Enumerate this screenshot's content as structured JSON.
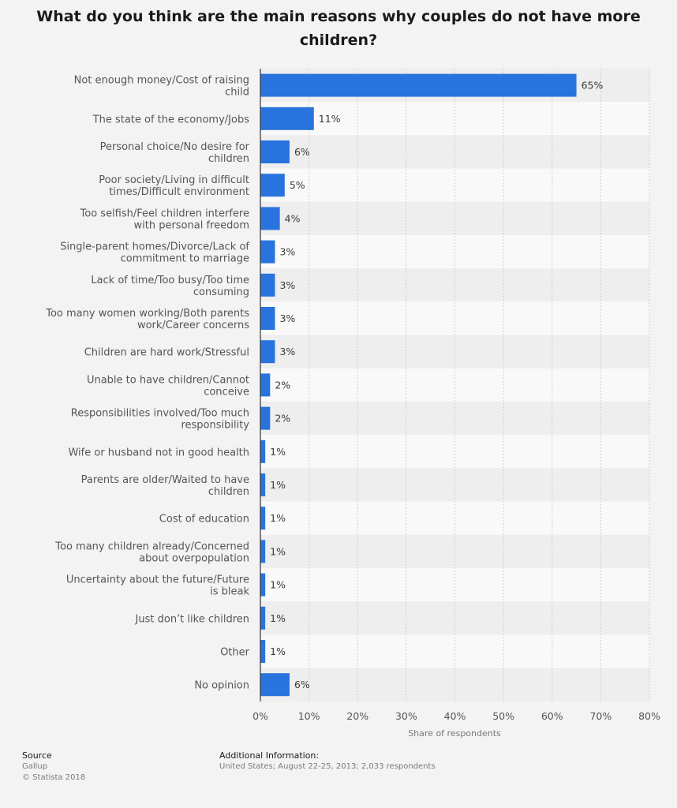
{
  "chart_data": {
    "type": "bar",
    "orientation": "horizontal",
    "title": "What do you think are the main reasons why couples do not have more children?",
    "xlabel": "Share of respondents",
    "categories": [
      "Not enough money/Cost of raising child",
      "The state of the economy/Jobs",
      "Personal choice/No desire for children",
      "Poor society/Living in difficult times/Difficult environment",
      "Too selfish/Feel children interfere with personal freedom",
      "Single-parent homes/Divorce/Lack of commitment to marriage",
      "Lack of time/Too busy/Too time consuming",
      "Too many women working/Both parents work/Career concerns",
      "Children are hard work/Stressful",
      "Unable to have children/Cannot conceive",
      "Responsibilities involved/Too much responsibility",
      "Wife or husband not in good health",
      "Parents are older/Waited to have children",
      "Cost of education",
      "Too many children already/Concerned about overpopulation",
      "Uncertainty about the future/Future is bleak",
      "Just don’t like children",
      "Other",
      "No opinion"
    ],
    "values": [
      65,
      11,
      6,
      5,
      4,
      3,
      3,
      3,
      3,
      2,
      2,
      1,
      1,
      1,
      1,
      1,
      1,
      1,
      6
    ],
    "value_labels": [
      "65%",
      "11%",
      "6%",
      "5%",
      "4%",
      "3%",
      "3%",
      "3%",
      "3%",
      "2%",
      "2%",
      "1%",
      "1%",
      "1%",
      "1%",
      "1%",
      "1%",
      "1%",
      "6%"
    ],
    "xlim": [
      0,
      80
    ],
    "xticks": [
      0,
      10,
      20,
      30,
      40,
      50,
      60,
      70,
      80
    ],
    "xtick_labels": [
      "0%",
      "10%",
      "20%",
      "30%",
      "40%",
      "50%",
      "60%",
      "70%",
      "80%"
    ],
    "grid": true,
    "bar_color": "#2873dd"
  },
  "footer": {
    "source_heading": "Source",
    "source_name": "Gallup",
    "copyright": "© Statista 2018",
    "info_heading": "Additional Information:",
    "info_text": "United States; August 22-25, 2013; 2,033 respondents"
  }
}
